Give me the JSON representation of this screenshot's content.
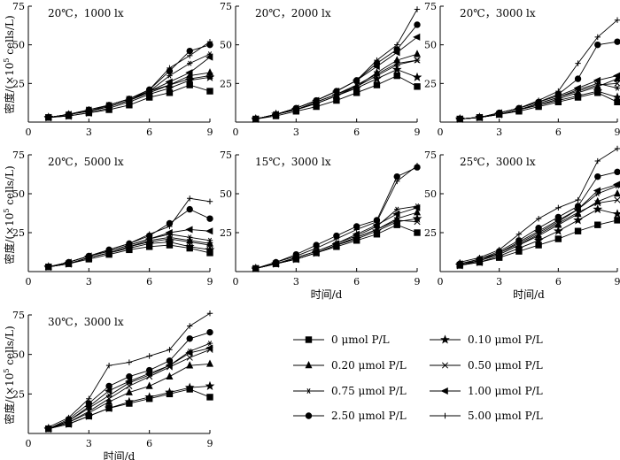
{
  "figure": {
    "ylabel_parts": [
      "密度/(×10",
      "5",
      " cells/L)"
    ],
    "xlabel": "时间/d",
    "x_ticks": [
      0,
      3,
      6,
      9
    ],
    "y_ticks": [
      0,
      25,
      50,
      75
    ],
    "y_tick_labels": [
      "",
      "25",
      "50",
      "75"
    ]
  },
  "legend": [
    {
      "label": "0 μmol P/L",
      "marker": "square"
    },
    {
      "label": "0.10 μmol P/L",
      "marker": "star"
    },
    {
      "label": "0.20 μmol P/L",
      "marker": "triangle"
    },
    {
      "label": "0.50 μmol P/L",
      "marker": "x"
    },
    {
      "label": "0.75 μmol P/L",
      "marker": "asterisk"
    },
    {
      "label": "1.00 μmol P/L",
      "marker": "left-triangle"
    },
    {
      "label": "2.50 μmol P/L",
      "marker": "circle"
    },
    {
      "label": "5.00 μmol P/L",
      "marker": "plus"
    }
  ],
  "chart_data": [
    {
      "type": "line",
      "title": "20℃，1000 lx",
      "xlim": [
        0,
        9
      ],
      "ylim": [
        0,
        75
      ],
      "x": [
        1,
        2,
        3,
        4,
        5,
        6,
        7,
        8,
        9
      ],
      "series": [
        {
          "name": "0 μmol P/L",
          "values": [
            3,
            4,
            6,
            8,
            11,
            16,
            19,
            24,
            20
          ]
        },
        {
          "name": "0.10 μmol P/L",
          "values": [
            3,
            4,
            6,
            9,
            13,
            18,
            22,
            27,
            29
          ]
        },
        {
          "name": "0.20 μmol P/L",
          "values": [
            3,
            5,
            7,
            10,
            14,
            19,
            24,
            30,
            32
          ]
        },
        {
          "name": "0.50 μmol P/L",
          "values": [
            3,
            5,
            8,
            11,
            15,
            20,
            24,
            28,
            30
          ]
        },
        {
          "name": "0.75 μmol P/L",
          "values": [
            3,
            5,
            7,
            10,
            14,
            20,
            30,
            38,
            44
          ]
        },
        {
          "name": "1.00 μmol P/L",
          "values": [
            3,
            5,
            7,
            10,
            14,
            20,
            26,
            32,
            42
          ]
        },
        {
          "name": "2.50 μmol P/L",
          "values": [
            3,
            5,
            8,
            11,
            15,
            21,
            33,
            46,
            50
          ]
        },
        {
          "name": "5.00 μmol P/L",
          "values": [
            3,
            5,
            7,
            11,
            15,
            21,
            35,
            43,
            52
          ]
        }
      ]
    },
    {
      "type": "line",
      "title": "20℃，2000 lx",
      "xlim": [
        0,
        9
      ],
      "ylim": [
        0,
        75
      ],
      "x": [
        1,
        2,
        3,
        4,
        5,
        6,
        7,
        8,
        9
      ],
      "series": [
        {
          "name": "0 μmol P/L",
          "values": [
            2,
            4,
            7,
            10,
            14,
            19,
            24,
            30,
            23
          ]
        },
        {
          "name": "0.10 μmol P/L",
          "values": [
            2,
            5,
            8,
            12,
            17,
            22,
            28,
            34,
            29
          ]
        },
        {
          "name": "0.20 μmol P/L",
          "values": [
            2,
            5,
            8,
            12,
            17,
            23,
            32,
            40,
            44
          ]
        },
        {
          "name": "0.50 μmol P/L",
          "values": [
            2,
            5,
            8,
            13,
            18,
            24,
            31,
            38,
            40
          ]
        },
        {
          "name": "0.75 μmol P/L",
          "values": [
            2,
            5,
            8,
            13,
            18,
            23,
            30,
            37,
            40
          ]
        },
        {
          "name": "1.00 μmol P/L",
          "values": [
            2,
            5,
            9,
            14,
            20,
            27,
            36,
            45,
            55
          ]
        },
        {
          "name": "2.50 μmol P/L",
          "values": [
            2,
            5,
            9,
            14,
            20,
            27,
            38,
            47,
            63
          ]
        },
        {
          "name": "5.00 μmol P/L",
          "values": [
            2,
            5,
            9,
            14,
            20,
            27,
            40,
            50,
            73
          ]
        }
      ]
    },
    {
      "type": "line",
      "title": "20℃，3000 lx",
      "xlim": [
        0,
        9
      ],
      "ylim": [
        0,
        75
      ],
      "x": [
        1,
        2,
        3,
        4,
        5,
        6,
        7,
        8,
        9
      ],
      "series": [
        {
          "name": "0 μmol P/L",
          "values": [
            2,
            3,
            5,
            7,
            10,
            13,
            16,
            19,
            13
          ]
        },
        {
          "name": "0.10 μmol P/L",
          "values": [
            2,
            3,
            5,
            8,
            11,
            14,
            17,
            20,
            16
          ]
        },
        {
          "name": "0.20 μmol P/L",
          "values": [
            2,
            3,
            5,
            8,
            11,
            15,
            19,
            23,
            28
          ]
        },
        {
          "name": "0.50 μmol P/L",
          "values": [
            2,
            3,
            5,
            8,
            12,
            16,
            20,
            24,
            25
          ]
        },
        {
          "name": "0.75 μmol P/L",
          "values": [
            2,
            3,
            5,
            8,
            12,
            16,
            21,
            25,
            22
          ]
        },
        {
          "name": "1.00 μmol P/L",
          "values": [
            2,
            3,
            6,
            9,
            13,
            17,
            22,
            27,
            30
          ]
        },
        {
          "name": "2.50 μmol P/L",
          "values": [
            2,
            3,
            6,
            9,
            13,
            18,
            28,
            50,
            52
          ]
        },
        {
          "name": "5.00 μmol P/L",
          "values": [
            2,
            3,
            6,
            9,
            14,
            20,
            38,
            55,
            66
          ]
        }
      ]
    },
    {
      "type": "line",
      "title": "20℃，5000 lx",
      "xlim": [
        0,
        9
      ],
      "ylim": [
        0,
        75
      ],
      "x": [
        1,
        2,
        3,
        4,
        5,
        6,
        7,
        8,
        9
      ],
      "series": [
        {
          "name": "0 μmol P/L",
          "values": [
            3,
            5,
            8,
            11,
            14,
            16,
            17,
            15,
            12
          ]
        },
        {
          "name": "0.10 μmol P/L",
          "values": [
            3,
            5,
            9,
            12,
            15,
            18,
            19,
            16,
            14
          ]
        },
        {
          "name": "0.20 μmol P/L",
          "values": [
            3,
            5,
            9,
            12,
            16,
            20,
            22,
            20,
            18
          ]
        },
        {
          "name": "0.50 μmol P/L",
          "values": [
            3,
            5,
            9,
            12,
            16,
            19,
            21,
            19,
            17
          ]
        },
        {
          "name": "0.75 μmol P/L",
          "values": [
            3,
            6,
            10,
            13,
            17,
            21,
            24,
            22,
            20
          ]
        },
        {
          "name": "1.00 μmol P/L",
          "values": [
            3,
            6,
            10,
            13,
            17,
            21,
            25,
            27,
            26
          ]
        },
        {
          "name": "2.50 μmol P/L",
          "values": [
            3,
            6,
            10,
            14,
            18,
            23,
            31,
            40,
            34
          ]
        },
        {
          "name": "5.00 μmol P/L",
          "values": [
            3,
            6,
            10,
            14,
            18,
            24,
            29,
            47,
            45
          ]
        }
      ]
    },
    {
      "type": "line",
      "title": "15℃，3000 lx",
      "xlim": [
        0,
        9
      ],
      "ylim": [
        0,
        75
      ],
      "x": [
        1,
        2,
        3,
        4,
        5,
        6,
        7,
        8,
        9
      ],
      "series": [
        {
          "name": "0 μmol P/L",
          "values": [
            2,
            5,
            8,
            12,
            16,
            20,
            24,
            30,
            25
          ]
        },
        {
          "name": "0.10 μmol P/L",
          "values": [
            2,
            5,
            8,
            12,
            17,
            21,
            26,
            32,
            34
          ]
        },
        {
          "name": "0.20 μmol P/L",
          "values": [
            2,
            5,
            8,
            12,
            17,
            22,
            27,
            34,
            38
          ]
        },
        {
          "name": "0.50 μmol P/L",
          "values": [
            2,
            5,
            8,
            12,
            17,
            22,
            27,
            33,
            32
          ]
        },
        {
          "name": "0.75 μmol P/L",
          "values": [
            2,
            5,
            9,
            13,
            18,
            23,
            29,
            40,
            42
          ]
        },
        {
          "name": "1.00 μmol P/L",
          "values": [
            2,
            5,
            9,
            13,
            18,
            24,
            30,
            37,
            41
          ]
        },
        {
          "name": "2.50 μmol P/L",
          "values": [
            2,
            6,
            11,
            17,
            23,
            29,
            33,
            61,
            67
          ]
        },
        {
          "name": "5.00 μmol P/L",
          "values": [
            2,
            6,
            10,
            15,
            21,
            27,
            32,
            58,
            68
          ]
        }
      ]
    },
    {
      "type": "line",
      "title": "25℃，3000 lx",
      "xlim": [
        0,
        9
      ],
      "ylim": [
        0,
        75
      ],
      "x": [
        1,
        2,
        3,
        4,
        5,
        6,
        7,
        8,
        9
      ],
      "series": [
        {
          "name": "0 μmol P/L",
          "values": [
            4,
            6,
            9,
            13,
            17,
            21,
            26,
            30,
            33
          ]
        },
        {
          "name": "0.10 μmol P/L",
          "values": [
            4,
            6,
            10,
            15,
            20,
            26,
            33,
            40,
            37
          ]
        },
        {
          "name": "0.20 μmol P/L",
          "values": [
            5,
            7,
            11,
            17,
            23,
            30,
            37,
            45,
            50
          ]
        },
        {
          "name": "0.50 μmol P/L",
          "values": [
            4,
            7,
            11,
            17,
            24,
            31,
            38,
            44,
            46
          ]
        },
        {
          "name": "0.75 μmol P/L",
          "values": [
            4,
            7,
            12,
            18,
            25,
            32,
            40,
            50,
            55
          ]
        },
        {
          "name": "1.00 μmol P/L",
          "values": [
            5,
            8,
            12,
            19,
            26,
            33,
            40,
            52,
            56
          ]
        },
        {
          "name": "2.50 μmol P/L",
          "values": [
            5,
            8,
            13,
            20,
            28,
            35,
            42,
            61,
            64
          ]
        },
        {
          "name": "5.00 μmol P/L",
          "values": [
            6,
            9,
            14,
            24,
            34,
            41,
            46,
            71,
            79
          ]
        }
      ]
    },
    {
      "type": "line",
      "title": "30℃，3000 lx",
      "xlim": [
        0,
        9
      ],
      "ylim": [
        0,
        75
      ],
      "x": [
        1,
        2,
        3,
        4,
        5,
        6,
        7,
        8,
        9
      ],
      "series": [
        {
          "name": "0 μmol P/L",
          "values": [
            3,
            6,
            11,
            16,
            19,
            22,
            25,
            28,
            23
          ]
        },
        {
          "name": "0.10 μmol P/L",
          "values": [
            3,
            6,
            11,
            16,
            20,
            23,
            26,
            29,
            30
          ]
        },
        {
          "name": "0.20 μmol P/L",
          "values": [
            3,
            7,
            13,
            20,
            26,
            30,
            36,
            43,
            44
          ]
        },
        {
          "name": "0.50 μmol P/L",
          "values": [
            3,
            7,
            14,
            22,
            30,
            36,
            42,
            48,
            53
          ]
        },
        {
          "name": "0.75 μmol P/L",
          "values": [
            3,
            8,
            16,
            24,
            32,
            37,
            43,
            52,
            57
          ]
        },
        {
          "name": "1.00 μmol P/L",
          "values": [
            3,
            8,
            17,
            27,
            33,
            38,
            43,
            51,
            54
          ]
        },
        {
          "name": "2.50 μmol P/L",
          "values": [
            3,
            9,
            19,
            30,
            36,
            40,
            46,
            60,
            64
          ]
        },
        {
          "name": "5.00 μmol P/L",
          "values": [
            4,
            10,
            22,
            43,
            45,
            49,
            53,
            68,
            76
          ]
        }
      ]
    }
  ]
}
